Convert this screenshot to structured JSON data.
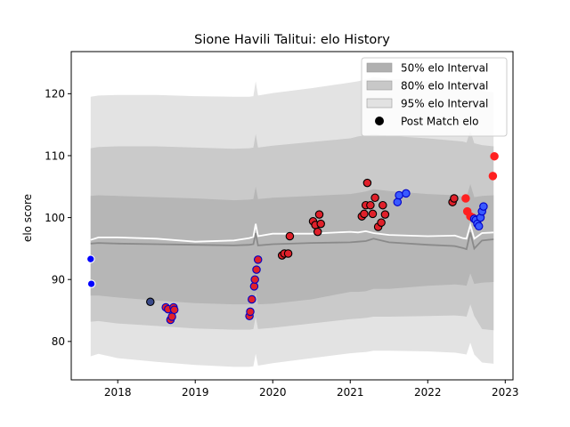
{
  "chart_data": {
    "type": "scatter",
    "title": "Sione Havili Talitui: elo History",
    "xlabel": "",
    "ylabel": "elo score",
    "xlim": [
      2017.4,
      2023.1
    ],
    "ylim": [
      73.8,
      126.8
    ],
    "xticks": [
      2018,
      2019,
      2020,
      2021,
      2022,
      2023
    ],
    "xtick_labels": [
      "2018",
      "2019",
      "2020",
      "2021",
      "2022",
      "2023"
    ],
    "yticks": [
      80,
      90,
      100,
      110,
      120
    ],
    "ytick_labels": [
      "80",
      "90",
      "100",
      "110",
      "120"
    ],
    "legend_position": "top-right",
    "legend": [
      {
        "label": "50% elo Interval",
        "kind": "patch",
        "color": "#b0b0b0"
      },
      {
        "label": "80% elo Interval",
        "kind": "patch",
        "color": "#c8c8c8"
      },
      {
        "label": "95% elo Interval",
        "kind": "patch",
        "color": "#e2e2e2"
      },
      {
        "label": "Post Match elo",
        "kind": "marker",
        "color": "#000000"
      }
    ],
    "bands": {
      "x": [
        2017.65,
        2017.75,
        2018.0,
        2018.5,
        2019.0,
        2019.5,
        2019.7,
        2019.75,
        2019.78,
        2019.81,
        2020.0,
        2020.5,
        2021.0,
        2021.1,
        2021.2,
        2021.3,
        2021.5,
        2022.0,
        2022.35,
        2022.45,
        2022.5,
        2022.55,
        2022.6,
        2022.7,
        2022.85
      ],
      "median": [
        95.8,
        95.9,
        95.8,
        95.7,
        95.6,
        95.5,
        95.6,
        95.7,
        97.5,
        95.5,
        95.7,
        95.9,
        96.0,
        96.1,
        96.2,
        96.6,
        96.0,
        95.6,
        95.4,
        95.1,
        94.9,
        97.6,
        95.0,
        96.3,
        96.5
      ],
      "mean": [
        96.4,
        96.8,
        96.8,
        96.6,
        96.1,
        96.3,
        96.7,
        96.9,
        99.0,
        97.0,
        97.4,
        97.4,
        97.7,
        97.6,
        97.8,
        97.5,
        97.2,
        97.0,
        97.1,
        96.7,
        96.6,
        98.8,
        96.6,
        97.5,
        97.6
      ],
      "p50_lo": [
        87.4,
        87.4,
        87.1,
        86.6,
        86.2,
        86.0,
        86.0,
        86.1,
        88.0,
        86.0,
        86.1,
        86.8,
        88.0,
        88.0,
        88.1,
        88.5,
        88.5,
        89.0,
        89.2,
        89.1,
        89.0,
        91.0,
        89.3,
        89.5,
        89.6
      ],
      "p50_hi": [
        103.5,
        103.6,
        103.5,
        103.3,
        103.1,
        102.8,
        102.9,
        103.0,
        105.0,
        103.0,
        103.2,
        103.5,
        103.8,
        104.0,
        104.2,
        104.6,
        104.3,
        103.8,
        103.6,
        103.4,
        103.3,
        105.4,
        103.3,
        103.5,
        103.6
      ],
      "p80_lo": [
        83.2,
        83.3,
        82.9,
        82.5,
        82.1,
        81.9,
        81.9,
        82.0,
        84.0,
        82.0,
        82.2,
        82.9,
        83.6,
        83.7,
        83.8,
        84.0,
        84.0,
        84.1,
        84.2,
        84.1,
        84.0,
        86.0,
        84.1,
        82.0,
        81.8
      ],
      "p80_hi": [
        111.2,
        111.4,
        111.5,
        111.5,
        111.3,
        111.1,
        111.2,
        111.3,
        113.5,
        111.3,
        111.6,
        112.2,
        112.8,
        113.1,
        113.3,
        113.5,
        113.2,
        112.8,
        112.4,
        112.3,
        112.1,
        114.0,
        112.0,
        111.7,
        111.5
      ],
      "p95_lo": [
        77.6,
        78.0,
        77.3,
        76.7,
        76.2,
        75.9,
        75.9,
        76.0,
        78.0,
        76.1,
        76.5,
        77.3,
        78.1,
        78.2,
        78.3,
        78.5,
        78.5,
        78.4,
        78.2,
        78.0,
        77.9,
        79.8,
        77.9,
        76.6,
        76.4
      ],
      "p95_hi": [
        119.5,
        119.7,
        119.8,
        119.8,
        119.6,
        119.5,
        119.5,
        119.6,
        122.0,
        119.7,
        120.1,
        120.9,
        121.8,
        122.0,
        122.3,
        122.7,
        122.4,
        122.0,
        121.7,
        121.5,
        121.3,
        123.0,
        121.1,
        120.5,
        120.2
      ]
    },
    "points": [
      {
        "x": 2017.65,
        "y": 93.3,
        "fill": "#0000ff",
        "edge": "#ffffff"
      },
      {
        "x": 2017.66,
        "y": 89.3,
        "fill": "#0000ff",
        "edge": "#ffffff"
      },
      {
        "x": 2018.42,
        "y": 86.4,
        "fill": "#3a4a8a",
        "edge": "#000000"
      },
      {
        "x": 2018.62,
        "y": 85.5,
        "fill": "#e0202a",
        "edge": "#0000c8"
      },
      {
        "x": 2018.65,
        "y": 85.2,
        "fill": "#e0202a",
        "edge": "#0000c8"
      },
      {
        "x": 2018.68,
        "y": 83.5,
        "fill": "#e0202a",
        "edge": "#0000c8"
      },
      {
        "x": 2018.7,
        "y": 84.0,
        "fill": "#e0202a",
        "edge": "#0000c8"
      },
      {
        "x": 2018.72,
        "y": 85.5,
        "fill": "#e0202a",
        "edge": "#0000c8"
      },
      {
        "x": 2018.73,
        "y": 85.1,
        "fill": "#e0202a",
        "edge": "#0000c8"
      },
      {
        "x": 2019.7,
        "y": 84.1,
        "fill": "#e0202a",
        "edge": "#0000c8"
      },
      {
        "x": 2019.71,
        "y": 84.8,
        "fill": "#e0202a",
        "edge": "#0000c8"
      },
      {
        "x": 2019.73,
        "y": 86.8,
        "fill": "#e0202a",
        "edge": "#0000c8"
      },
      {
        "x": 2019.76,
        "y": 88.9,
        "fill": "#e0202a",
        "edge": "#0000c8"
      },
      {
        "x": 2019.77,
        "y": 90.0,
        "fill": "#e0202a",
        "edge": "#0000c8"
      },
      {
        "x": 2019.79,
        "y": 91.6,
        "fill": "#e0202a",
        "edge": "#0000c8"
      },
      {
        "x": 2019.81,
        "y": 93.2,
        "fill": "#e0202a",
        "edge": "#0000c8"
      },
      {
        "x": 2020.12,
        "y": 93.9,
        "fill": "#e0202a",
        "edge": "#000000"
      },
      {
        "x": 2020.15,
        "y": 94.2,
        "fill": "#e0202a",
        "edge": "#000000"
      },
      {
        "x": 2020.2,
        "y": 94.2,
        "fill": "#e0202a",
        "edge": "#000000"
      },
      {
        "x": 2020.22,
        "y": 97.0,
        "fill": "#e0202a",
        "edge": "#000000"
      },
      {
        "x": 2020.52,
        "y": 99.4,
        "fill": "#e0202a",
        "edge": "#000000"
      },
      {
        "x": 2020.55,
        "y": 98.8,
        "fill": "#e0202a",
        "edge": "#000000"
      },
      {
        "x": 2020.58,
        "y": 97.7,
        "fill": "#e0202a",
        "edge": "#000000"
      },
      {
        "x": 2020.6,
        "y": 100.5,
        "fill": "#e0202a",
        "edge": "#000000"
      },
      {
        "x": 2020.62,
        "y": 99.0,
        "fill": "#e0202a",
        "edge": "#000000"
      },
      {
        "x": 2021.15,
        "y": 100.2,
        "fill": "#e0202a",
        "edge": "#000000"
      },
      {
        "x": 2021.18,
        "y": 100.6,
        "fill": "#e0202a",
        "edge": "#000000"
      },
      {
        "x": 2021.2,
        "y": 102.0,
        "fill": "#e0202a",
        "edge": "#000000"
      },
      {
        "x": 2021.22,
        "y": 105.6,
        "fill": "#e0202a",
        "edge": "#000000"
      },
      {
        "x": 2021.26,
        "y": 102.0,
        "fill": "#e0202a",
        "edge": "#000000"
      },
      {
        "x": 2021.29,
        "y": 100.6,
        "fill": "#e0202a",
        "edge": "#000000"
      },
      {
        "x": 2021.32,
        "y": 103.2,
        "fill": "#e0202a",
        "edge": "#000000"
      },
      {
        "x": 2021.36,
        "y": 98.5,
        "fill": "#e0202a",
        "edge": "#000000"
      },
      {
        "x": 2021.4,
        "y": 99.2,
        "fill": "#e0202a",
        "edge": "#000000"
      },
      {
        "x": 2021.42,
        "y": 102.0,
        "fill": "#e0202a",
        "edge": "#000000"
      },
      {
        "x": 2021.45,
        "y": 100.5,
        "fill": "#e0202a",
        "edge": "#000000"
      },
      {
        "x": 2021.61,
        "y": 102.5,
        "fill": "#3a5aff",
        "edge": "#0000c8"
      },
      {
        "x": 2021.63,
        "y": 103.6,
        "fill": "#3a5aff",
        "edge": "#0000c8"
      },
      {
        "x": 2021.72,
        "y": 103.9,
        "fill": "#3a5aff",
        "edge": "#0000c8"
      },
      {
        "x": 2022.32,
        "y": 102.5,
        "fill": "#e0202a",
        "edge": "#000000"
      },
      {
        "x": 2022.34,
        "y": 103.1,
        "fill": "#e0202a",
        "edge": "#000000"
      },
      {
        "x": 2022.49,
        "y": 103.1,
        "fill": "#ff2020",
        "edge": "#ff2020"
      },
      {
        "x": 2022.51,
        "y": 101.0,
        "fill": "#ff2020",
        "edge": "#ff2020"
      },
      {
        "x": 2022.55,
        "y": 100.2,
        "fill": "#ff2020",
        "edge": "#ff2020"
      },
      {
        "x": 2022.58,
        "y": 100.0,
        "fill": "#ff2020",
        "edge": "#ff2020"
      },
      {
        "x": 2022.6,
        "y": 99.8,
        "fill": "#3a5aff",
        "edge": "#0000c8"
      },
      {
        "x": 2022.62,
        "y": 99.6,
        "fill": "#3a5aff",
        "edge": "#0000c8"
      },
      {
        "x": 2022.64,
        "y": 99.0,
        "fill": "#3a5aff",
        "edge": "#0000c8"
      },
      {
        "x": 2022.66,
        "y": 98.6,
        "fill": "#3a5aff",
        "edge": "#0000c8"
      },
      {
        "x": 2022.68,
        "y": 100.0,
        "fill": "#3a5aff",
        "edge": "#0000c8"
      },
      {
        "x": 2022.7,
        "y": 101.0,
        "fill": "#3a5aff",
        "edge": "#0000c8"
      },
      {
        "x": 2022.72,
        "y": 101.8,
        "fill": "#3a5aff",
        "edge": "#0000c8"
      },
      {
        "x": 2022.84,
        "y": 106.7,
        "fill": "#ff2020",
        "edge": "#ff2020"
      },
      {
        "x": 2022.86,
        "y": 109.9,
        "fill": "#ff2020",
        "edge": "#ff2020"
      }
    ]
  }
}
